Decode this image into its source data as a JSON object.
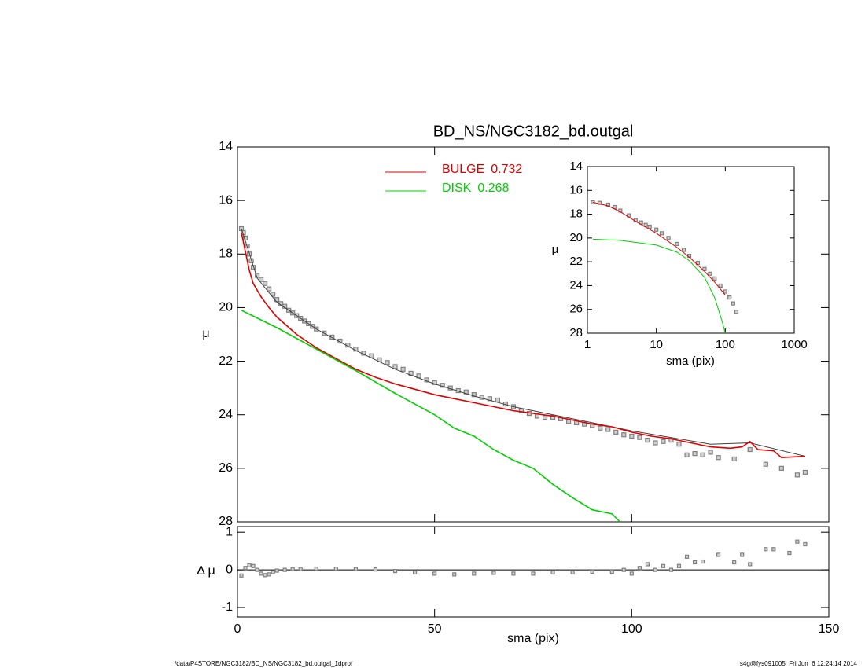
{
  "chart_data": [
    {
      "type": "line",
      "title": "BD_NS/NGC3182_bd.outgal",
      "ylabel": "μ",
      "xlim": [
        0,
        150
      ],
      "xticks": [
        0,
        50,
        100,
        150
      ],
      "ylim": [
        28,
        14
      ],
      "yticks": [
        14,
        16,
        18,
        20,
        22,
        24,
        26,
        28
      ],
      "series": [
        {
          "color": "#808080",
          "marker": "square",
          "x": [
            1,
            1.5,
            2,
            2.5,
            3,
            3.5,
            4,
            5,
            6,
            7,
            8,
            9,
            10,
            11,
            12,
            13,
            14,
            15,
            16,
            17,
            18,
            19,
            20,
            22,
            24,
            26,
            28,
            30,
            32,
            34,
            36,
            38,
            40,
            42,
            44,
            46,
            48,
            50,
            52,
            54,
            56,
            58,
            60,
            62,
            64,
            66,
            68,
            70,
            72,
            74,
            76,
            78,
            80,
            82,
            84,
            86,
            88,
            90,
            92,
            94,
            96,
            98,
            100,
            102,
            104,
            106,
            108,
            110,
            112,
            114,
            116,
            118,
            120,
            122,
            126,
            130,
            134,
            138,
            142,
            144
          ],
          "values": [
            17.05,
            17.2,
            17.4,
            17.7,
            18.0,
            18.25,
            18.5,
            18.8,
            18.95,
            19.1,
            19.3,
            19.5,
            19.7,
            19.85,
            19.95,
            20.1,
            20.2,
            20.3,
            20.4,
            20.5,
            20.6,
            20.7,
            20.8,
            20.95,
            21.1,
            21.25,
            21.4,
            21.55,
            21.7,
            21.8,
            21.95,
            22.05,
            22.2,
            22.3,
            22.45,
            22.55,
            22.7,
            22.8,
            22.9,
            23.0,
            23.1,
            23.15,
            23.25,
            23.35,
            23.4,
            23.45,
            23.6,
            23.7,
            23.85,
            23.95,
            24.05,
            24.1,
            24.1,
            24.15,
            24.25,
            24.3,
            24.35,
            24.4,
            24.5,
            24.55,
            24.65,
            24.75,
            24.8,
            24.85,
            24.95,
            25.05,
            25.0,
            24.95,
            25.1,
            25.5,
            25.45,
            25.5,
            25.4,
            25.6,
            25.65,
            25.3,
            25.85,
            26.0,
            26.25,
            26.15
          ]
        },
        {
          "color": "#404040",
          "x": [
            1,
            5,
            10,
            20,
            30,
            40,
            50,
            60,
            70,
            80,
            90,
            100,
            110,
            120,
            130,
            144
          ],
          "values": [
            17.05,
            18.9,
            19.8,
            20.8,
            21.6,
            22.3,
            22.85,
            23.3,
            23.7,
            24.0,
            24.3,
            24.6,
            24.85,
            25.1,
            25.05,
            25.55
          ]
        },
        {
          "name": "BULGE",
          "fraction": 0.732,
          "color": "#e00000",
          "x": [
            1,
            2,
            3,
            4,
            6,
            8,
            10,
            15,
            20,
            25,
            30,
            35,
            40,
            45,
            50,
            55,
            60,
            65,
            70,
            75,
            80,
            85,
            90,
            95,
            100,
            105,
            110,
            115,
            120,
            125,
            128,
            130,
            132,
            136,
            138,
            144
          ],
          "values": [
            17.2,
            17.9,
            18.6,
            19.1,
            19.6,
            20.0,
            20.35,
            21.0,
            21.5,
            21.9,
            22.3,
            22.6,
            22.85,
            23.05,
            23.25,
            23.4,
            23.55,
            23.7,
            23.85,
            23.95,
            24.05,
            24.2,
            24.35,
            24.45,
            24.65,
            24.8,
            24.9,
            25.05,
            25.2,
            25.25,
            25.2,
            25.0,
            25.3,
            25.35,
            25.6,
            25.55
          ]
        },
        {
          "name": "DISK",
          "fraction": 0.268,
          "color": "#00d000",
          "x": [
            1,
            10,
            20,
            30,
            40,
            50,
            55,
            60,
            65,
            70,
            75,
            80,
            85,
            90,
            95,
            97
          ],
          "values": [
            20.1,
            20.75,
            21.55,
            22.35,
            23.2,
            24.0,
            24.5,
            24.8,
            25.3,
            25.7,
            26.0,
            26.6,
            27.1,
            27.55,
            27.7,
            28.0
          ]
        }
      ]
    },
    {
      "type": "scatter",
      "xlabel": "sma (pix)",
      "ylabel": "Δ μ",
      "xlim": [
        0,
        150
      ],
      "xticks": [
        0,
        50,
        100,
        150
      ],
      "ylim": [
        -1.25,
        1.15
      ],
      "yticks": [
        -1,
        0,
        1
      ],
      "reference_line": 0,
      "series": [
        {
          "color": "#808080",
          "marker": "square",
          "x": [
            1,
            2,
            3,
            4,
            5,
            6,
            7,
            8,
            9,
            10,
            12,
            14,
            16,
            20,
            25,
            30,
            35,
            40,
            45,
            50,
            55,
            60,
            65,
            70,
            75,
            80,
            85,
            90,
            95,
            98,
            100,
            102,
            104,
            106,
            108,
            110,
            112,
            114,
            116,
            118,
            122,
            126,
            128,
            130,
            134,
            136,
            140,
            142,
            144
          ],
          "values": [
            -0.15,
            0.05,
            0.12,
            0.1,
            0.0,
            -0.1,
            -0.14,
            -0.12,
            -0.06,
            -0.02,
            0.0,
            0.02,
            0.02,
            0.03,
            0.03,
            0.02,
            0.01,
            -0.03,
            -0.07,
            -0.1,
            -0.12,
            -0.1,
            -0.08,
            -0.1,
            -0.1,
            -0.07,
            -0.07,
            -0.05,
            -0.05,
            0.0,
            -0.1,
            0.05,
            0.15,
            0.0,
            0.1,
            0.0,
            0.1,
            0.35,
            0.2,
            0.22,
            0.4,
            0.2,
            0.4,
            0.15,
            0.55,
            0.55,
            0.45,
            0.75,
            0.68
          ]
        }
      ]
    },
    {
      "type": "line",
      "xscale": "log",
      "xlabel": "sma (pix)",
      "ylabel": "μ",
      "xlim": [
        1,
        1000
      ],
      "xticks": [
        1,
        10,
        100,
        1000
      ],
      "ylim": [
        28,
        14
      ],
      "yticks": [
        14,
        16,
        18,
        20,
        22,
        24,
        26,
        28
      ],
      "series": [
        {
          "color": "#808080",
          "marker": "square",
          "x": [
            1.2,
            1.5,
            2,
            2.5,
            3,
            4,
            5,
            6,
            7,
            8,
            10,
            12,
            15,
            20,
            25,
            30,
            40,
            50,
            60,
            70,
            85,
            100,
            115,
            130,
            145
          ],
          "values": [
            17.0,
            17.05,
            17.2,
            17.4,
            17.7,
            18.1,
            18.5,
            18.7,
            18.9,
            19.05,
            19.3,
            19.6,
            20.0,
            20.5,
            21.0,
            21.5,
            22.1,
            22.6,
            23.0,
            23.4,
            24.0,
            24.5,
            25.0,
            25.5,
            26.2
          ]
        },
        {
          "color": "#e00000",
          "x": [
            1.2,
            2,
            3,
            5,
            10,
            20,
            30,
            50,
            70,
            100
          ],
          "values": [
            17.0,
            17.3,
            17.8,
            18.6,
            19.6,
            20.8,
            21.6,
            22.8,
            23.7,
            24.8
          ]
        },
        {
          "color": "#00d000",
          "x": [
            1.2,
            3,
            10,
            20,
            30,
            50,
            70,
            90,
            100
          ],
          "values": [
            20.1,
            20.2,
            20.6,
            21.2,
            21.9,
            23.3,
            25.0,
            27.0,
            28.0
          ]
        }
      ]
    }
  ],
  "footer": {
    "path": "/data/P4STORE/NGC3182/BD_NS/NGC3182_bd.outgal_1dprof",
    "stamp": "s4g@fys091005  Fri Jun  6 12:24:14 2014"
  }
}
